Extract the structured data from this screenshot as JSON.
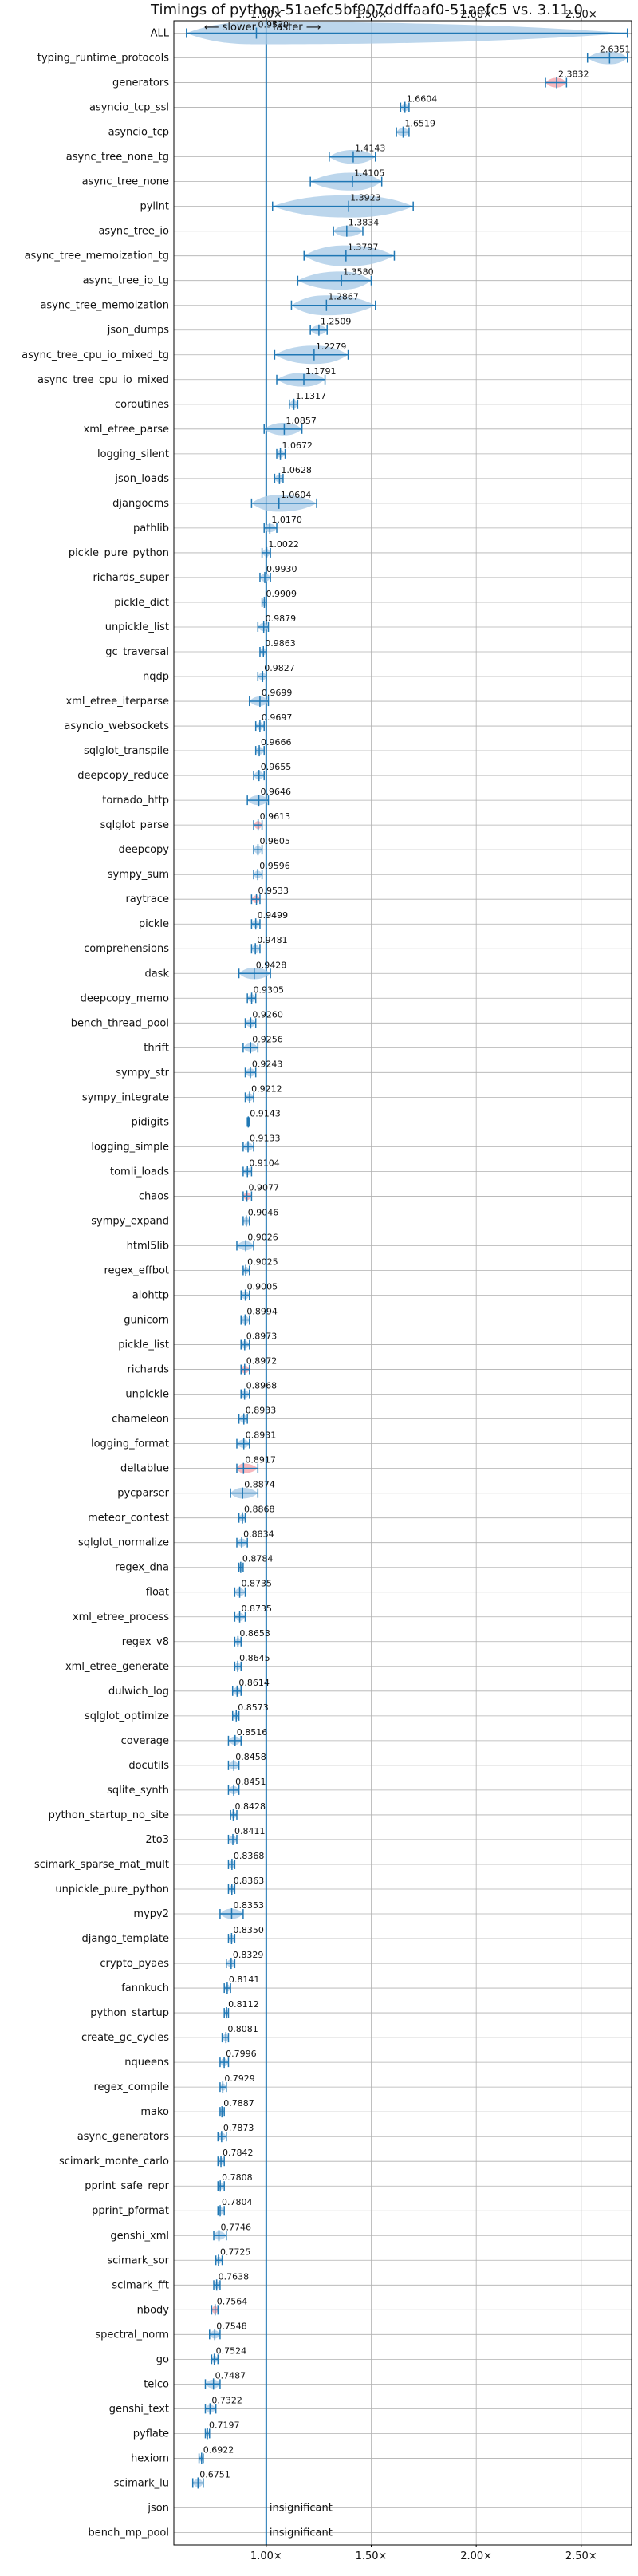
{
  "chart_data": {
    "type": "violin",
    "title": "Timings of python-51aefc5bf907ddffaaf0-51aefc5 vs. 3.11.0",
    "axis_note": {
      "slower": "⟵ slower",
      "faster": "faster ⟶"
    },
    "x_ticks": [
      "1.00×",
      "1.50×",
      "2.00×",
      "2.50×"
    ],
    "x_tick_values": [
      1.0,
      1.5,
      2.0,
      2.5
    ],
    "xlim": [
      0.56,
      2.74
    ],
    "grid": true,
    "insignificant_label": "insignificant",
    "benchmarks": [
      {
        "name": "ALL",
        "value": 0.953,
        "label": "0.9530",
        "lo": 0.62,
        "hi": 2.72
      },
      {
        "name": "typing_runtime_protocols",
        "value": 2.6351,
        "label": "2.6351",
        "lo": 2.53,
        "hi": 2.72
      },
      {
        "name": "generators",
        "value": 2.3832,
        "label": "2.3832",
        "lo": 2.33,
        "hi": 2.43,
        "highlight": true
      },
      {
        "name": "asyncio_tcp_ssl",
        "value": 1.6604,
        "label": "1.6604",
        "lo": 1.64,
        "hi": 1.68
      },
      {
        "name": "asyncio_tcp",
        "value": 1.6519,
        "label": "1.6519",
        "lo": 1.62,
        "hi": 1.68
      },
      {
        "name": "async_tree_none_tg",
        "value": 1.4143,
        "label": "1.4143",
        "lo": 1.3,
        "hi": 1.52
      },
      {
        "name": "async_tree_none",
        "value": 1.4105,
        "label": "1.4105",
        "lo": 1.21,
        "hi": 1.55
      },
      {
        "name": "pylint",
        "value": 1.3923,
        "label": "1.3923",
        "lo": 1.03,
        "hi": 1.7
      },
      {
        "name": "async_tree_io",
        "value": 1.3834,
        "label": "1.3834",
        "lo": 1.32,
        "hi": 1.46
      },
      {
        "name": "async_tree_memoization_tg",
        "value": 1.3797,
        "label": "1.3797",
        "lo": 1.18,
        "hi": 1.61
      },
      {
        "name": "async_tree_io_tg",
        "value": 1.358,
        "label": "1.3580",
        "lo": 1.15,
        "hi": 1.5
      },
      {
        "name": "async_tree_memoization",
        "value": 1.2867,
        "label": "1.2867",
        "lo": 1.12,
        "hi": 1.52
      },
      {
        "name": "json_dumps",
        "value": 1.2509,
        "label": "1.2509",
        "lo": 1.21,
        "hi": 1.29
      },
      {
        "name": "async_tree_cpu_io_mixed_tg",
        "value": 1.2279,
        "label": "1.2279",
        "lo": 1.04,
        "hi": 1.39
      },
      {
        "name": "async_tree_cpu_io_mixed",
        "value": 1.1791,
        "label": "1.1791",
        "lo": 1.05,
        "hi": 1.28
      },
      {
        "name": "coroutines",
        "value": 1.1317,
        "label": "1.1317",
        "lo": 1.11,
        "hi": 1.15
      },
      {
        "name": "xml_etree_parse",
        "value": 1.0857,
        "label": "1.0857",
        "lo": 0.99,
        "hi": 1.17
      },
      {
        "name": "logging_silent",
        "value": 1.0672,
        "label": "1.0672",
        "lo": 1.05,
        "hi": 1.09
      },
      {
        "name": "json_loads",
        "value": 1.0628,
        "label": "1.0628",
        "lo": 1.04,
        "hi": 1.08
      },
      {
        "name": "djangocms",
        "value": 1.0604,
        "label": "1.0604",
        "lo": 0.93,
        "hi": 1.24
      },
      {
        "name": "pathlib",
        "value": 1.017,
        "label": "1.0170",
        "lo": 0.99,
        "hi": 1.05
      },
      {
        "name": "pickle_pure_python",
        "value": 1.0022,
        "label": "1.0022",
        "lo": 0.98,
        "hi": 1.02
      },
      {
        "name": "richards_super",
        "value": 0.993,
        "label": "0.9930",
        "lo": 0.97,
        "hi": 1.02
      },
      {
        "name": "pickle_dict",
        "value": 0.9909,
        "label": "0.9909",
        "lo": 0.98,
        "hi": 1.0
      },
      {
        "name": "unpickle_list",
        "value": 0.9879,
        "label": "0.9879",
        "lo": 0.96,
        "hi": 1.01
      },
      {
        "name": "gc_traversal",
        "value": 0.9863,
        "label": "0.9863",
        "lo": 0.97,
        "hi": 1.0
      },
      {
        "name": "nqdp",
        "value": 0.9827,
        "label": "0.9827",
        "lo": 0.96,
        "hi": 1.0
      },
      {
        "name": "xml_etree_iterparse",
        "value": 0.9699,
        "label": "0.9699",
        "lo": 0.92,
        "hi": 1.01
      },
      {
        "name": "asyncio_websockets",
        "value": 0.9697,
        "label": "0.9697",
        "lo": 0.95,
        "hi": 0.99
      },
      {
        "name": "sqlglot_transpile",
        "value": 0.9666,
        "label": "0.9666",
        "lo": 0.95,
        "hi": 0.99
      },
      {
        "name": "deepcopy_reduce",
        "value": 0.9655,
        "label": "0.9655",
        "lo": 0.94,
        "hi": 0.99
      },
      {
        "name": "tornado_http",
        "value": 0.9646,
        "label": "0.9646",
        "lo": 0.91,
        "hi": 1.01
      },
      {
        "name": "sqlglot_parse",
        "value": 0.9613,
        "label": "0.9613",
        "lo": 0.94,
        "hi": 0.98,
        "highlight": true
      },
      {
        "name": "deepcopy",
        "value": 0.9605,
        "label": "0.9605",
        "lo": 0.94,
        "hi": 0.98
      },
      {
        "name": "sympy_sum",
        "value": 0.9596,
        "label": "0.9596",
        "lo": 0.94,
        "hi": 0.98
      },
      {
        "name": "raytrace",
        "value": 0.9533,
        "label": "0.9533",
        "lo": 0.93,
        "hi": 0.97,
        "highlight": true
      },
      {
        "name": "pickle",
        "value": 0.9499,
        "label": "0.9499",
        "lo": 0.93,
        "hi": 0.97
      },
      {
        "name": "comprehensions",
        "value": 0.9481,
        "label": "0.9481",
        "lo": 0.93,
        "hi": 0.97
      },
      {
        "name": "dask",
        "value": 0.9428,
        "label": "0.9428",
        "lo": 0.87,
        "hi": 1.02
      },
      {
        "name": "deepcopy_memo",
        "value": 0.9305,
        "label": "0.9305",
        "lo": 0.91,
        "hi": 0.95
      },
      {
        "name": "bench_thread_pool",
        "value": 0.926,
        "label": "0.9260",
        "lo": 0.9,
        "hi": 0.95
      },
      {
        "name": "thrift",
        "value": 0.9256,
        "label": "0.9256",
        "lo": 0.89,
        "hi": 0.96
      },
      {
        "name": "sympy_str",
        "value": 0.9243,
        "label": "0.9243",
        "lo": 0.9,
        "hi": 0.95
      },
      {
        "name": "sympy_integrate",
        "value": 0.9212,
        "label": "0.9212",
        "lo": 0.9,
        "hi": 0.94
      },
      {
        "name": "pidigits",
        "value": 0.9143,
        "label": "0.9143",
        "lo": 0.91,
        "hi": 0.92
      },
      {
        "name": "logging_simple",
        "value": 0.9133,
        "label": "0.9133",
        "lo": 0.89,
        "hi": 0.94
      },
      {
        "name": "tomli_loads",
        "value": 0.9104,
        "label": "0.9104",
        "lo": 0.89,
        "hi": 0.93
      },
      {
        "name": "chaos",
        "value": 0.9077,
        "label": "0.9077",
        "lo": 0.89,
        "hi": 0.93,
        "highlight": true
      },
      {
        "name": "sympy_expand",
        "value": 0.9046,
        "label": "0.9046",
        "lo": 0.89,
        "hi": 0.92
      },
      {
        "name": "html5lib",
        "value": 0.9026,
        "label": "0.9026",
        "lo": 0.86,
        "hi": 0.94
      },
      {
        "name": "regex_effbot",
        "value": 0.9025,
        "label": "0.9025",
        "lo": 0.89,
        "hi": 0.92
      },
      {
        "name": "aiohttp",
        "value": 0.9005,
        "label": "0.9005",
        "lo": 0.88,
        "hi": 0.92
      },
      {
        "name": "gunicorn",
        "value": 0.8994,
        "label": "0.8994",
        "lo": 0.88,
        "hi": 0.92
      },
      {
        "name": "pickle_list",
        "value": 0.8973,
        "label": "0.8973",
        "lo": 0.88,
        "hi": 0.92
      },
      {
        "name": "richards",
        "value": 0.8972,
        "label": "0.8972",
        "lo": 0.88,
        "hi": 0.92,
        "highlight": true
      },
      {
        "name": "unpickle",
        "value": 0.8968,
        "label": "0.8968",
        "lo": 0.88,
        "hi": 0.92
      },
      {
        "name": "chameleon",
        "value": 0.8933,
        "label": "0.8933",
        "lo": 0.87,
        "hi": 0.91
      },
      {
        "name": "logging_format",
        "value": 0.8931,
        "label": "0.8931",
        "lo": 0.86,
        "hi": 0.92
      },
      {
        "name": "deltablue",
        "value": 0.8917,
        "label": "0.8917",
        "lo": 0.86,
        "hi": 0.96,
        "highlight": true
      },
      {
        "name": "pycparser",
        "value": 0.8874,
        "label": "0.8874",
        "lo": 0.83,
        "hi": 0.96
      },
      {
        "name": "meteor_contest",
        "value": 0.8868,
        "label": "0.8868",
        "lo": 0.87,
        "hi": 0.9
      },
      {
        "name": "sqlglot_normalize",
        "value": 0.8834,
        "label": "0.8834",
        "lo": 0.86,
        "hi": 0.91
      },
      {
        "name": "regex_dna",
        "value": 0.8784,
        "label": "0.8784",
        "lo": 0.87,
        "hi": 0.89
      },
      {
        "name": "float",
        "value": 0.8735,
        "label": "0.8735",
        "lo": 0.85,
        "hi": 0.9
      },
      {
        "name": "xml_etree_process",
        "value": 0.8735,
        "label": "0.8735",
        "lo": 0.85,
        "hi": 0.9
      },
      {
        "name": "regex_v8",
        "value": 0.8653,
        "label": "0.8653",
        "lo": 0.85,
        "hi": 0.88
      },
      {
        "name": "xml_etree_generate",
        "value": 0.8645,
        "label": "0.8645",
        "lo": 0.85,
        "hi": 0.88
      },
      {
        "name": "dulwich_log",
        "value": 0.8614,
        "label": "0.8614",
        "lo": 0.84,
        "hi": 0.88
      },
      {
        "name": "sqlglot_optimize",
        "value": 0.8573,
        "label": "0.8573",
        "lo": 0.84,
        "hi": 0.87
      },
      {
        "name": "coverage",
        "value": 0.8516,
        "label": "0.8516",
        "lo": 0.82,
        "hi": 0.88
      },
      {
        "name": "docutils",
        "value": 0.8458,
        "label": "0.8458",
        "lo": 0.82,
        "hi": 0.87
      },
      {
        "name": "sqlite_synth",
        "value": 0.8451,
        "label": "0.8451",
        "lo": 0.82,
        "hi": 0.87
      },
      {
        "name": "python_startup_no_site",
        "value": 0.8428,
        "label": "0.8428",
        "lo": 0.83,
        "hi": 0.86
      },
      {
        "name": "2to3",
        "value": 0.8411,
        "label": "0.8411",
        "lo": 0.82,
        "hi": 0.86
      },
      {
        "name": "scimark_sparse_mat_mult",
        "value": 0.8368,
        "label": "0.8368",
        "lo": 0.82,
        "hi": 0.85
      },
      {
        "name": "unpickle_pure_python",
        "value": 0.8363,
        "label": "0.8363",
        "lo": 0.82,
        "hi": 0.85
      },
      {
        "name": "mypy2",
        "value": 0.8353,
        "label": "0.8353",
        "lo": 0.78,
        "hi": 0.89
      },
      {
        "name": "django_template",
        "value": 0.835,
        "label": "0.8350",
        "lo": 0.82,
        "hi": 0.85
      },
      {
        "name": "crypto_pyaes",
        "value": 0.8329,
        "label": "0.8329",
        "lo": 0.81,
        "hi": 0.85
      },
      {
        "name": "fannkuch",
        "value": 0.8141,
        "label": "0.8141",
        "lo": 0.8,
        "hi": 0.83
      },
      {
        "name": "python_startup",
        "value": 0.8112,
        "label": "0.8112",
        "lo": 0.8,
        "hi": 0.82
      },
      {
        "name": "create_gc_cycles",
        "value": 0.8081,
        "label": "0.8081",
        "lo": 0.79,
        "hi": 0.82
      },
      {
        "name": "nqueens",
        "value": 0.7996,
        "label": "0.7996",
        "lo": 0.78,
        "hi": 0.82
      },
      {
        "name": "regex_compile",
        "value": 0.7929,
        "label": "0.7929",
        "lo": 0.78,
        "hi": 0.81
      },
      {
        "name": "mako",
        "value": 0.7887,
        "label": "0.7887",
        "lo": 0.78,
        "hi": 0.8
      },
      {
        "name": "async_generators",
        "value": 0.7873,
        "label": "0.7873",
        "lo": 0.77,
        "hi": 0.81
      },
      {
        "name": "scimark_monte_carlo",
        "value": 0.7842,
        "label": "0.7842",
        "lo": 0.77,
        "hi": 0.8
      },
      {
        "name": "pprint_safe_repr",
        "value": 0.7808,
        "label": "0.7808",
        "lo": 0.77,
        "hi": 0.8
      },
      {
        "name": "pprint_pformat",
        "value": 0.7804,
        "label": "0.7804",
        "lo": 0.77,
        "hi": 0.8
      },
      {
        "name": "genshi_xml",
        "value": 0.7746,
        "label": "0.7746",
        "lo": 0.75,
        "hi": 0.81
      },
      {
        "name": "scimark_sor",
        "value": 0.7725,
        "label": "0.7725",
        "lo": 0.76,
        "hi": 0.79
      },
      {
        "name": "scimark_fft",
        "value": 0.7638,
        "label": "0.7638",
        "lo": 0.75,
        "hi": 0.78
      },
      {
        "name": "nbody",
        "value": 0.7564,
        "label": "0.7564",
        "lo": 0.74,
        "hi": 0.77,
        "highlight": true
      },
      {
        "name": "spectral_norm",
        "value": 0.7548,
        "label": "0.7548",
        "lo": 0.73,
        "hi": 0.78
      },
      {
        "name": "go",
        "value": 0.7524,
        "label": "0.7524",
        "lo": 0.74,
        "hi": 0.77
      },
      {
        "name": "telco",
        "value": 0.7487,
        "label": "0.7487",
        "lo": 0.71,
        "hi": 0.78
      },
      {
        "name": "genshi_text",
        "value": 0.7322,
        "label": "0.7322",
        "lo": 0.71,
        "hi": 0.76
      },
      {
        "name": "pyflate",
        "value": 0.7197,
        "label": "0.7197",
        "lo": 0.71,
        "hi": 0.73
      },
      {
        "name": "hexiom",
        "value": 0.6922,
        "label": "0.6922",
        "lo": 0.68,
        "hi": 0.7
      },
      {
        "name": "scimark_lu",
        "value": 0.6751,
        "label": "0.6751",
        "lo": 0.65,
        "hi": 0.7
      },
      {
        "name": "json",
        "value": null,
        "label": "insignificant"
      },
      {
        "name": "bench_mp_pool",
        "value": null,
        "label": "insignificant"
      }
    ]
  },
  "colors": {
    "violin": "#a6c8e6",
    "line": "#1f77b4",
    "highlight": "#f4a0a8",
    "grid": "#b0b0b0",
    "axis": "#000000"
  }
}
